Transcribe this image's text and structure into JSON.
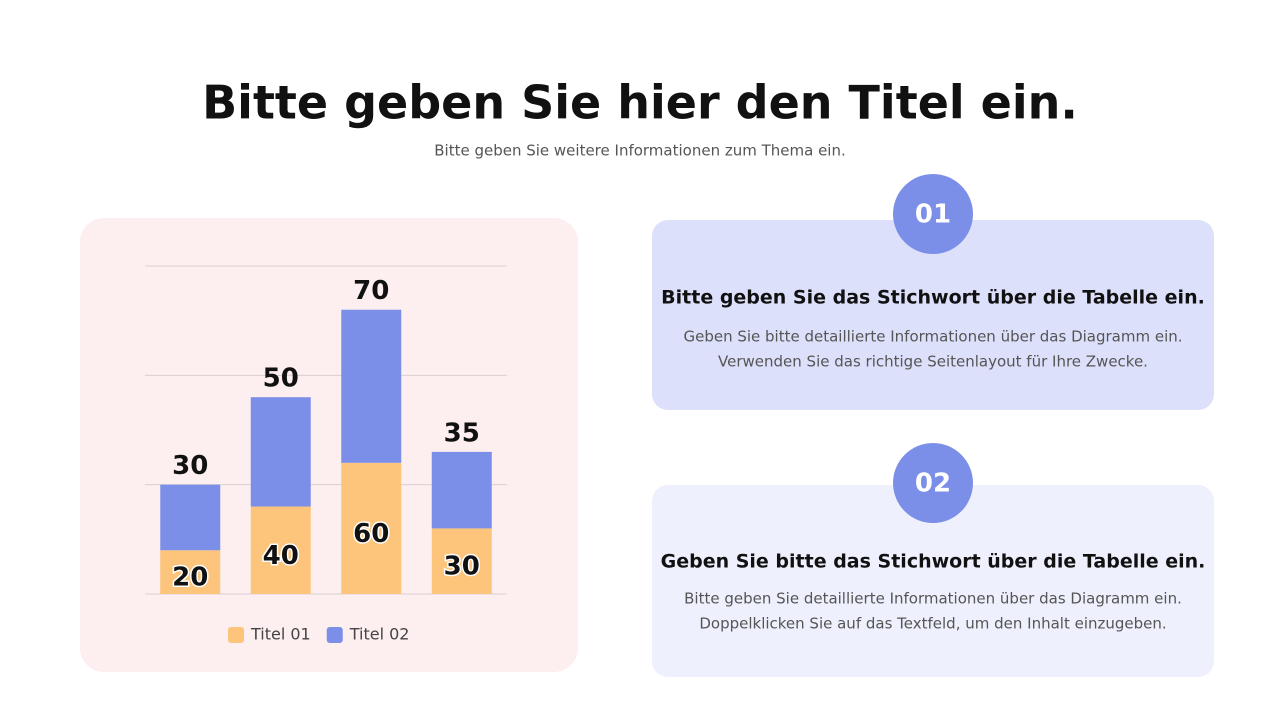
{
  "header": {
    "title": "Bitte geben Sie hier den Titel ein.",
    "subtitle": "Bitte geben Sie weitere Informationen zum Thema ein."
  },
  "chart_data": {
    "type": "stacked-bar",
    "categories": [
      null,
      null,
      null,
      null
    ],
    "series": [
      {
        "name": "Titel 01",
        "color": "#fdc47c",
        "values": [
          20,
          40,
          60,
          30
        ]
      },
      {
        "name": "Titel 02",
        "color": "#7b8fe8",
        "values": [
          30,
          50,
          70,
          35
        ]
      }
    ],
    "ylim": [
      0,
      150
    ],
    "yticks": [
      0,
      50,
      100,
      150
    ],
    "grid": true,
    "legend": "bottom"
  },
  "cards": [
    {
      "number": "01",
      "heading": "Bitte geben Sie das Stichwort über die Tabelle ein.",
      "lines": [
        "Geben Sie bitte detaillierte Informationen über das Diagramm ein.",
        "Verwenden Sie das richtige Seitenlayout für Ihre Zwecke."
      ]
    },
    {
      "number": "02",
      "heading": "Geben Sie bitte das Stichwort über die Tabelle ein.",
      "lines": [
        "Bitte geben Sie detaillierte Informationen über das Diagramm ein.",
        "Doppelklicken Sie auf das Textfeld, um den Inhalt einzugeben."
      ]
    }
  ]
}
